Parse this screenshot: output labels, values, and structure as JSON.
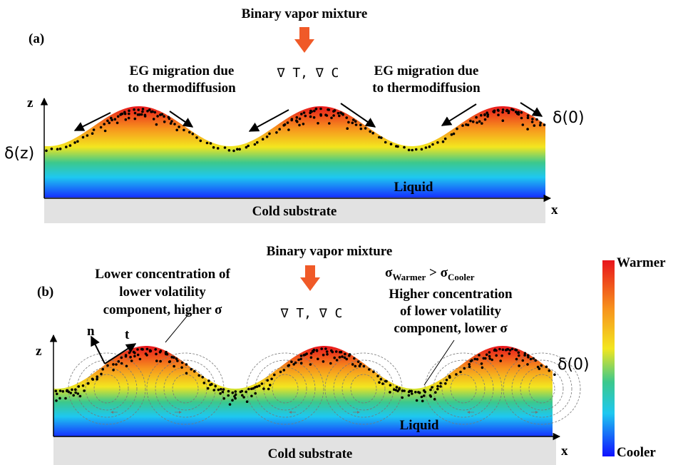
{
  "panel_a": {
    "title": "Binary vapor mixture",
    "label": "(a)",
    "left_note": [
      "EG migration due",
      "to thermodiffusion"
    ],
    "gradients": "∇ T, ∇ C",
    "right_note": [
      "EG migration due",
      "to thermodiffusion"
    ],
    "z_axis": "z",
    "x_axis": "x",
    "delta_z": "δ(z)",
    "delta_0": "δ(0)",
    "liquid": "Liquid",
    "substrate": "Cold substrate"
  },
  "panel_b": {
    "title": "Binary vapor mixture",
    "label": "(b)",
    "left_note": [
      "Lower concentration of",
      "lower volatility",
      "component,  higher σ"
    ],
    "gradients": "∇ T, ∇ C",
    "sigma_relation": {
      "left": "σ",
      "left_sub": "Warmer",
      "op": " > ",
      "right": "σ",
      "right_sub": "Cooler"
    },
    "right_note": [
      "Higher concentration",
      "of lower volatility",
      "component,  lower σ"
    ],
    "normal": "n",
    "tangent": "t",
    "z_axis": "z",
    "x_axis": "x",
    "delta_0": "δ(0)",
    "liquid": "Liquid",
    "substrate": "Cold substrate"
  },
  "colorbar": {
    "top": "Warmer",
    "bottom": "Cooler"
  }
}
